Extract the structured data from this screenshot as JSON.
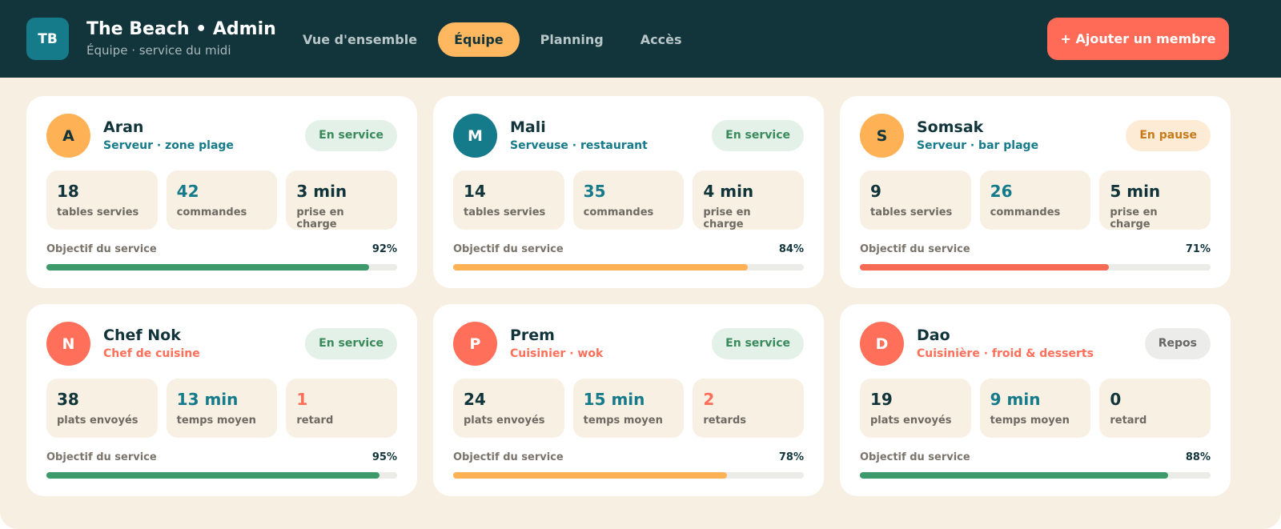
{
  "header": {
    "logo": "TB",
    "title": "The Beach • Admin",
    "subtitle": "Équipe · service du midi",
    "nav": [
      {
        "label": "Vue d'ensemble",
        "active": false
      },
      {
        "label": "Équipe",
        "active": true
      },
      {
        "label": "Planning",
        "active": false
      },
      {
        "label": "Accès",
        "active": false
      }
    ],
    "button": "+ Ajouter un membre"
  },
  "goal_label": "Objectif du service",
  "members": [
    {
      "initial": "A",
      "avatar_color": "#ffb155",
      "avatar_text": "#12343b",
      "name": "Aran",
      "role": "Serveur · zone plage",
      "role_color": "#157a8a",
      "status": {
        "label": "En service",
        "color": "#3a8a5c",
        "background": "#e3f1e8"
      },
      "stats": [
        {
          "value": "18",
          "label": "tables servies",
          "color": "#12343b"
        },
        {
          "value": "42",
          "label": "commandes",
          "color": "#157a8a"
        },
        {
          "value": "3 min",
          "label": "prise en charge",
          "color": "#12343b"
        }
      ],
      "goal": {
        "value": 92,
        "label": "92%"
      },
      "bar_color": "#3d9a6b"
    },
    {
      "initial": "M",
      "avatar_color": "#157a8a",
      "avatar_text": "#ffffff",
      "name": "Mali",
      "role": "Serveuse · restaurant",
      "role_color": "#157a8a",
      "status": {
        "label": "En service",
        "color": "#3a8a5c",
        "background": "#e3f1e8"
      },
      "stats": [
        {
          "value": "14",
          "label": "tables servies",
          "color": "#12343b"
        },
        {
          "value": "35",
          "label": "commandes",
          "color": "#157a8a"
        },
        {
          "value": "4 min",
          "label": "prise en charge",
          "color": "#12343b"
        }
      ],
      "goal": {
        "value": 84,
        "label": "84%"
      },
      "bar_color": "#ffb155"
    },
    {
      "initial": "S",
      "avatar_color": "#ffb155",
      "avatar_text": "#12343b",
      "name": "Somsak",
      "role": "Serveur · bar plage",
      "role_color": "#157a8a",
      "status": {
        "label": "En pause",
        "color": "#c77a1a",
        "background": "#fdebd6"
      },
      "stats": [
        {
          "value": "9",
          "label": "tables servies",
          "color": "#12343b"
        },
        {
          "value": "26",
          "label": "commandes",
          "color": "#157a8a"
        },
        {
          "value": "5 min",
          "label": "prise en charge",
          "color": "#12343b"
        }
      ],
      "goal": {
        "value": 71,
        "label": "71%"
      },
      "bar_color": "#f56b55"
    },
    {
      "initial": "N",
      "avatar_color": "#ff6f59",
      "avatar_text": "#ffffff",
      "name": "Chef Nok",
      "role": "Chef de cuisine",
      "role_color": "#ff6f59",
      "status": {
        "label": "En service",
        "color": "#3a8a5c",
        "background": "#e3f1e8"
      },
      "stats": [
        {
          "value": "38",
          "label": "plats envoyés",
          "color": "#12343b"
        },
        {
          "value": "13 min",
          "label": "temps moyen",
          "color": "#157a8a"
        },
        {
          "value": "1",
          "label": "retard",
          "color": "#ff6f59"
        }
      ],
      "goal": {
        "value": 95,
        "label": "95%"
      },
      "bar_color": "#3d9a6b"
    },
    {
      "initial": "P",
      "avatar_color": "#ff6f59",
      "avatar_text": "#ffffff",
      "name": "Prem",
      "role": "Cuisinier · wok",
      "role_color": "#ff6f59",
      "status": {
        "label": "En service",
        "color": "#3a8a5c",
        "background": "#e3f1e8"
      },
      "stats": [
        {
          "value": "24",
          "label": "plats envoyés",
          "color": "#12343b"
        },
        {
          "value": "15 min",
          "label": "temps moyen",
          "color": "#157a8a"
        },
        {
          "value": "2",
          "label": "retards",
          "color": "#ff6f59"
        }
      ],
      "goal": {
        "value": 78,
        "label": "78%"
      },
      "bar_color": "#ffb155"
    },
    {
      "initial": "D",
      "avatar_color": "#ff6f59",
      "avatar_text": "#ffffff",
      "name": "Dao",
      "role": "Cuisinière · froid & desserts",
      "role_color": "#ff6f59",
      "status": {
        "label": "Repos",
        "color": "#666666",
        "background": "#ececea"
      },
      "stats": [
        {
          "value": "19",
          "label": "plats envoyés",
          "color": "#12343b"
        },
        {
          "value": "9 min",
          "label": "temps moyen",
          "color": "#157a8a"
        },
        {
          "value": "0",
          "label": "retard",
          "color": "#12343b"
        }
      ],
      "goal": {
        "value": 88,
        "label": "88%"
      },
      "bar_color": "#3d9a6b"
    }
  ]
}
